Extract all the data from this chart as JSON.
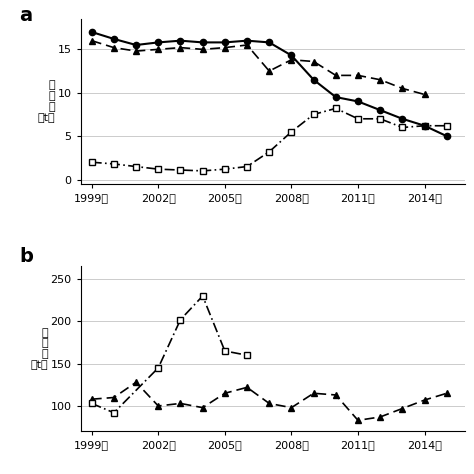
{
  "panel_a": {
    "label": "a",
    "years": [
      1999,
      2000,
      2001,
      2002,
      2003,
      2004,
      2005,
      2006,
      2007,
      2008,
      2009,
      2010,
      2011,
      2012,
      2013,
      2014,
      2015
    ],
    "solid_circle": [
      17.0,
      16.2,
      15.5,
      15.8,
      16.0,
      15.8,
      15.8,
      16.0,
      15.8,
      14.3,
      11.5,
      9.5,
      9.0,
      8.0,
      7.0,
      6.2,
      5.0
    ],
    "filled_triangle": [
      16.0,
      15.2,
      14.8,
      15.0,
      15.2,
      15.0,
      15.2,
      15.5,
      12.5,
      13.8,
      13.6,
      12.0,
      12.0,
      11.5,
      10.5,
      9.8,
      null
    ],
    "open_square": [
      2.0,
      1.8,
      1.5,
      1.2,
      1.1,
      1.0,
      1.2,
      1.5,
      3.2,
      5.5,
      7.5,
      8.2,
      7.0,
      7.0,
      6.0,
      6.2,
      6.2
    ],
    "ylabel_chars": [
      "漁",
      "獲",
      "量",
      "（t）"
    ],
    "yticks": [
      0,
      5,
      10,
      15
    ],
    "ylim": [
      -0.5,
      18.5
    ],
    "xtick_years": [
      1999,
      2002,
      2005,
      2008,
      2011,
      2014
    ],
    "xlabel_suffix": "年"
  },
  "panel_b": {
    "label": "b",
    "years": [
      1999,
      2000,
      2001,
      2002,
      2003,
      2004,
      2005,
      2006,
      2007,
      2008,
      2009,
      2010,
      2011,
      2012,
      2013,
      2014,
      2015
    ],
    "filled_triangle": [
      108,
      110,
      128,
      100,
      103,
      98,
      115,
      122,
      103,
      98,
      115,
      113,
      83,
      87,
      97,
      107,
      115
    ],
    "open_square": [
      103,
      92,
      null,
      145,
      202,
      230,
      165,
      160,
      null,
      null,
      null,
      null,
      null,
      null,
      null,
      null,
      null
    ],
    "ylabel_chars": [
      "漁",
      "獲",
      "量",
      "（t）"
    ],
    "yticks": [
      100,
      150,
      200,
      250
    ],
    "ylim": [
      70,
      265
    ],
    "xtick_years": [
      1999,
      2002,
      2005,
      2008,
      2011,
      2014
    ],
    "xlabel_suffix": "年"
  }
}
